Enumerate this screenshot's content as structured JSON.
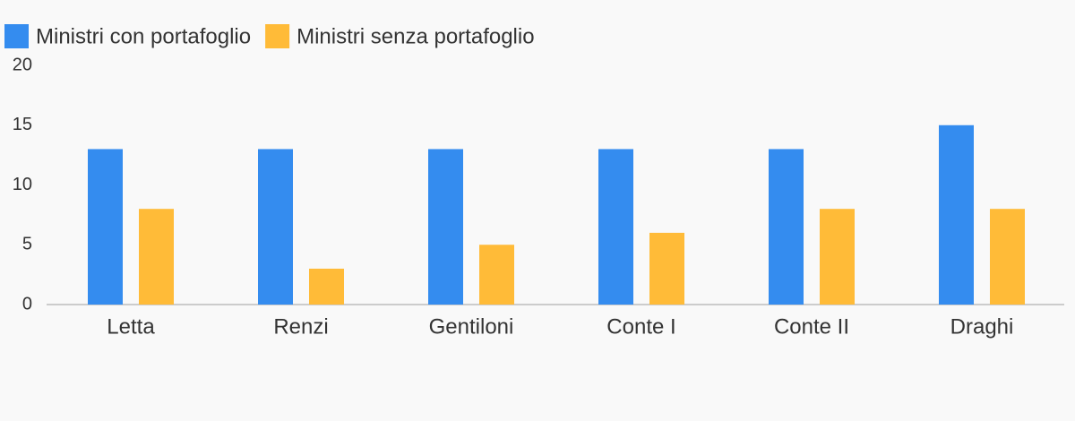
{
  "chart_data": {
    "type": "bar",
    "categories": [
      "Letta",
      "Renzi",
      "Gentiloni",
      "Conte I",
      "Conte II",
      "Draghi"
    ],
    "series": [
      {
        "name": "Ministri con portafoglio",
        "color": "#348cef",
        "values": [
          13,
          13,
          13,
          13,
          13,
          15
        ]
      },
      {
        "name": "Ministri senza portafoglio",
        "color": "#ffbb38",
        "values": [
          8,
          3,
          5,
          6,
          8,
          8
        ]
      }
    ],
    "ylim": [
      0,
      20
    ],
    "yticks": [
      0,
      5,
      10,
      15,
      20
    ],
    "grid": false,
    "legend": "top"
  }
}
